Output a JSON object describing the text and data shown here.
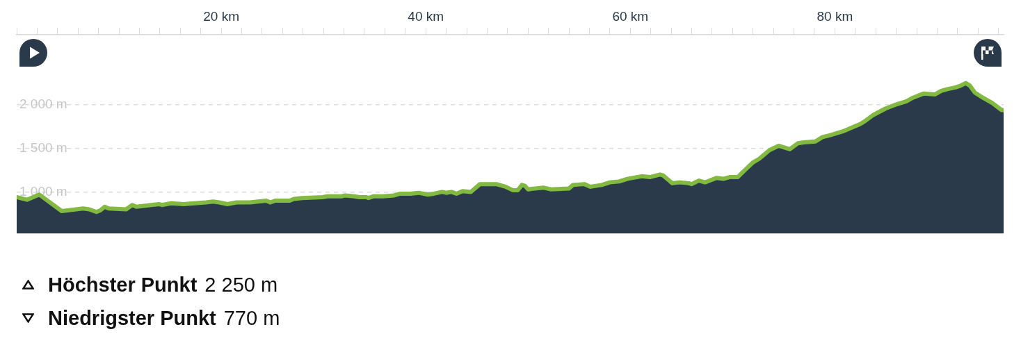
{
  "chart_data": {
    "type": "area",
    "x": [
      0,
      1.0,
      1.4,
      2.2,
      4.4,
      6.5,
      7.1,
      7.8,
      8.2,
      8.6,
      9.0,
      10.7,
      11.3,
      11.7,
      13.9,
      14.2,
      15.1,
      16.3,
      18.5,
      19.2,
      19.8,
      20.6,
      21.5,
      22.8,
      24.4,
      24.8,
      25.3,
      26.7,
      27.1,
      27.9,
      29.9,
      30.4,
      31.8,
      32.1,
      33.0,
      33.5,
      34.2,
      34.4,
      34.9,
      35.8,
      36.9,
      37.5,
      38.5,
      39.3,
      40.2,
      40.8,
      41.6,
      42.0,
      42.5,
      43.0,
      43.6,
      44.4,
      45.3,
      46.2,
      46.9,
      47.8,
      48.5,
      49.0,
      49.4,
      49.7,
      50.0,
      51.5,
      52.2,
      54.0,
      54.4,
      55.5,
      56.1,
      57.2,
      58.0,
      58.9,
      59.7,
      61.1,
      61.9,
      62.9,
      63.2,
      64.1,
      64.8,
      65.7,
      66.0,
      66.7,
      67.3,
      68.4,
      69.1,
      69.7,
      70.5,
      71.1,
      72.0,
      72.6,
      73.6,
      74.5,
      75.6,
      76.4,
      77.0,
      78.1,
      78.8,
      79.5,
      80.9,
      82.5,
      82.9,
      83.7,
      85.0,
      85.9,
      87.0,
      87.6,
      88.7,
      89.8,
      90.4,
      91.0,
      91.8,
      92.3,
      92.8,
      93.2,
      93.7,
      94.5,
      95.4,
      96.3,
      96.5
    ],
    "values": [
      940,
      910,
      930,
      970,
      780,
      810,
      800,
      770,
      790,
      830,
      810,
      800,
      850,
      830,
      860,
      850,
      870,
      860,
      880,
      890,
      880,
      860,
      880,
      880,
      900,
      880,
      900,
      900,
      920,
      930,
      940,
      950,
      950,
      960,
      950,
      940,
      940,
      930,
      950,
      950,
      960,
      980,
      980,
      990,
      970,
      980,
      1000,
      990,
      1000,
      980,
      1010,
      1000,
      1090,
      1090,
      1090,
      1060,
      1020,
      1020,
      1080,
      1070,
      1030,
      1050,
      1030,
      1040,
      1080,
      1090,
      1060,
      1080,
      1110,
      1120,
      1150,
      1180,
      1170,
      1200,
      1190,
      1100,
      1110,
      1100,
      1090,
      1130,
      1110,
      1160,
      1150,
      1170,
      1170,
      1240,
      1340,
      1380,
      1480,
      1530,
      1490,
      1560,
      1570,
      1580,
      1630,
      1650,
      1700,
      1780,
      1810,
      1880,
      1960,
      2000,
      2040,
      2080,
      2130,
      2120,
      2160,
      2180,
      2200,
      2220,
      2250,
      2220,
      2140,
      2080,
      2020,
      1940,
      1940
    ],
    "color": "#2b3a4b",
    "xlim": [
      0,
      96.5
    ],
    "xticks": [
      {
        "value": 0,
        "label": null
      },
      {
        "value": 2,
        "label": null
      },
      {
        "value": 4,
        "label": null
      },
      {
        "value": 6,
        "label": null
      },
      {
        "value": 8,
        "label": null
      },
      {
        "value": 10,
        "label": null
      },
      {
        "value": 12,
        "label": null
      },
      {
        "value": 14,
        "label": null
      },
      {
        "value": 16,
        "label": null
      },
      {
        "value": 18,
        "label": null
      },
      {
        "value": 20,
        "label": "20 km"
      },
      {
        "value": 22,
        "label": null
      },
      {
        "value": 24,
        "label": null
      },
      {
        "value": 26,
        "label": null
      },
      {
        "value": 28,
        "label": null
      },
      {
        "value": 30,
        "label": null
      },
      {
        "value": 32,
        "label": null
      },
      {
        "value": 34,
        "label": null
      },
      {
        "value": 36,
        "label": null
      },
      {
        "value": 38,
        "label": null
      },
      {
        "value": 40,
        "label": "40 km"
      },
      {
        "value": 42,
        "label": null
      },
      {
        "value": 44,
        "label": null
      },
      {
        "value": 46,
        "label": null
      },
      {
        "value": 48,
        "label": null
      },
      {
        "value": 50,
        "label": null
      },
      {
        "value": 52,
        "label": null
      },
      {
        "value": 54,
        "label": null
      },
      {
        "value": 56,
        "label": null
      },
      {
        "value": 58,
        "label": null
      },
      {
        "value": 60,
        "label": "60 km"
      },
      {
        "value": 62,
        "label": null
      },
      {
        "value": 64,
        "label": null
      },
      {
        "value": 66,
        "label": null
      },
      {
        "value": 68,
        "label": null
      },
      {
        "value": 70,
        "label": null
      },
      {
        "value": 72,
        "label": null
      },
      {
        "value": 74,
        "label": null
      },
      {
        "value": 76,
        "label": null
      },
      {
        "value": 78,
        "label": null
      },
      {
        "value": 80,
        "label": "80 km"
      },
      {
        "value": 82,
        "label": null
      },
      {
        "value": 84,
        "label": null
      },
      {
        "value": 86,
        "label": null
      },
      {
        "value": 88,
        "label": null
      },
      {
        "value": 90,
        "label": null
      },
      {
        "value": 92,
        "label": null
      },
      {
        "value": 94,
        "label": null
      },
      {
        "value": 96,
        "label": null
      }
    ],
    "ylim": [
      525,
      2805
    ],
    "yticks": [
      {
        "value": 1000,
        "label": "1 000 m"
      },
      {
        "value": 1500,
        "label": "1 500 m"
      },
      {
        "value": 2000,
        "label": "2 000 m"
      }
    ],
    "grid": "y",
    "marker": "none",
    "line_style": "solid",
    "annotations": [
      "Höchster Punkt",
      "2 250 m",
      "Niedrigster Punkt",
      "770 m"
    ]
  }
}
